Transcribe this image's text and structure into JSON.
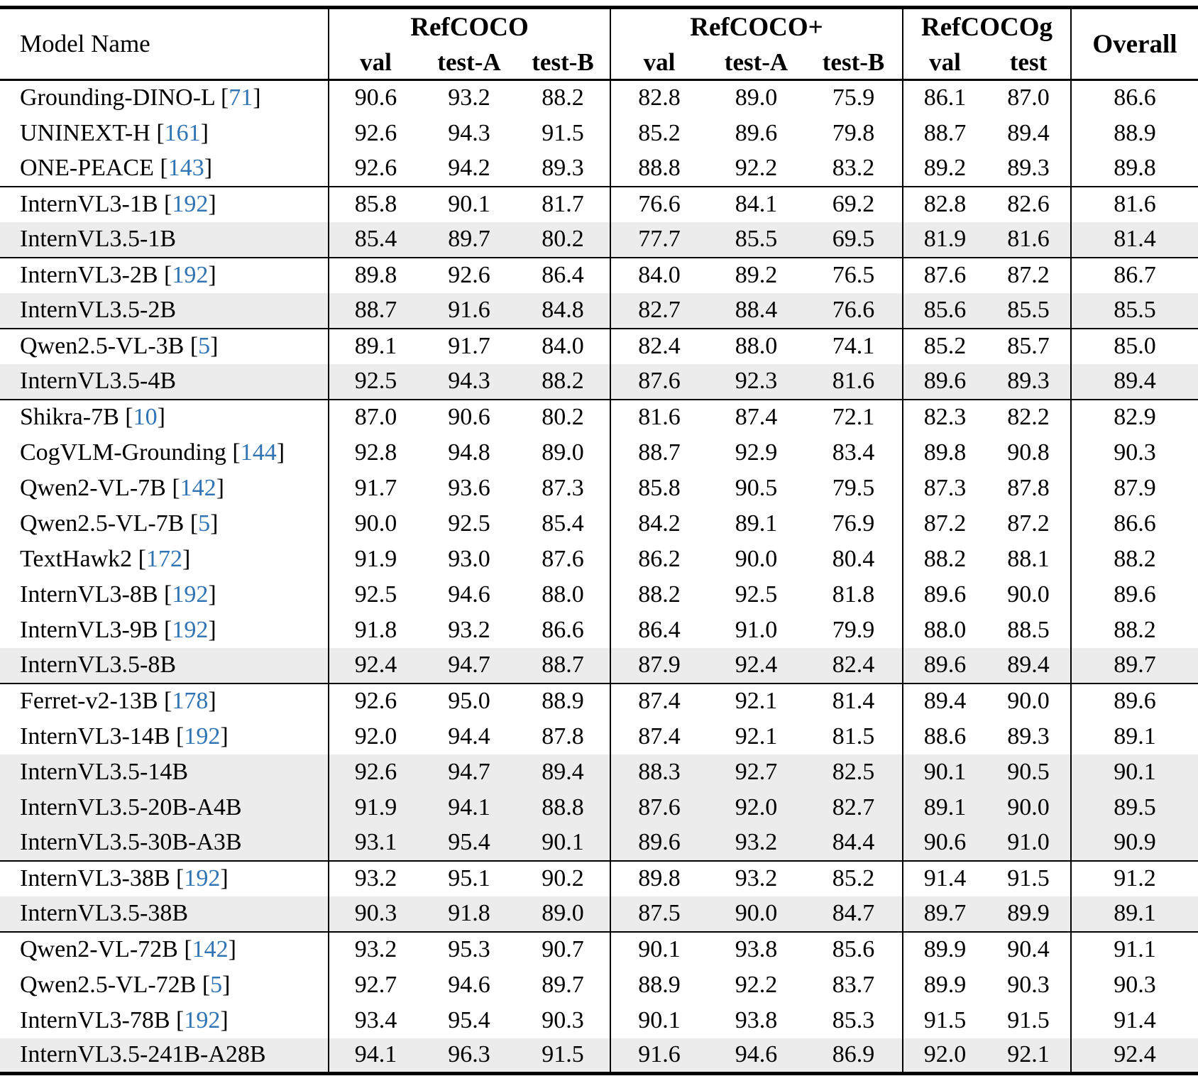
{
  "accent": {
    "citation_color": "#3174b4",
    "shaded_row_bg": "#ececec"
  },
  "table": {
    "header": {
      "model_col": "Model Name",
      "groups": [
        {
          "label": "RefCOCO",
          "subcols": [
            "val",
            "test-A",
            "test-B"
          ]
        },
        {
          "label": "RefCOCO+",
          "subcols": [
            "val",
            "test-A",
            "test-B"
          ]
        },
        {
          "label": "RefCOCOg",
          "subcols": [
            "val",
            "test"
          ]
        },
        {
          "label": "Overall",
          "subcols": []
        }
      ]
    },
    "rows": [
      {
        "model": "Grounding-DINO-L",
        "cite": "71",
        "shaded": false,
        "group_start": false,
        "values": [
          "90.6",
          "93.2",
          "88.2",
          "82.8",
          "89.0",
          "75.9",
          "86.1",
          "87.0",
          "86.6"
        ]
      },
      {
        "model": "UNINEXT-H",
        "cite": "161",
        "shaded": false,
        "group_start": false,
        "values": [
          "92.6",
          "94.3",
          "91.5",
          "85.2",
          "89.6",
          "79.8",
          "88.7",
          "89.4",
          "88.9"
        ]
      },
      {
        "model": "ONE-PEACE",
        "cite": "143",
        "shaded": false,
        "group_start": false,
        "values": [
          "92.6",
          "94.2",
          "89.3",
          "88.8",
          "92.2",
          "83.2",
          "89.2",
          "89.3",
          "89.8"
        ]
      },
      {
        "model": "InternVL3-1B",
        "cite": "192",
        "shaded": false,
        "group_start": true,
        "values": [
          "85.8",
          "90.1",
          "81.7",
          "76.6",
          "84.1",
          "69.2",
          "82.8",
          "82.6",
          "81.6"
        ]
      },
      {
        "model": "InternVL3.5-1B",
        "cite": "",
        "shaded": true,
        "group_start": false,
        "values": [
          "85.4",
          "89.7",
          "80.2",
          "77.7",
          "85.5",
          "69.5",
          "81.9",
          "81.6",
          "81.4"
        ]
      },
      {
        "model": "InternVL3-2B",
        "cite": "192",
        "shaded": false,
        "group_start": true,
        "values": [
          "89.8",
          "92.6",
          "86.4",
          "84.0",
          "89.2",
          "76.5",
          "87.6",
          "87.2",
          "86.7"
        ]
      },
      {
        "model": "InternVL3.5-2B",
        "cite": "",
        "shaded": true,
        "group_start": false,
        "values": [
          "88.7",
          "91.6",
          "84.8",
          "82.7",
          "88.4",
          "76.6",
          "85.6",
          "85.5",
          "85.5"
        ]
      },
      {
        "model": "Qwen2.5-VL-3B",
        "cite": "5",
        "shaded": false,
        "group_start": true,
        "values": [
          "89.1",
          "91.7",
          "84.0",
          "82.4",
          "88.0",
          "74.1",
          "85.2",
          "85.7",
          "85.0"
        ]
      },
      {
        "model": "InternVL3.5-4B",
        "cite": "",
        "shaded": true,
        "group_start": false,
        "values": [
          "92.5",
          "94.3",
          "88.2",
          "87.6",
          "92.3",
          "81.6",
          "89.6",
          "89.3",
          "89.4"
        ]
      },
      {
        "model": "Shikra-7B",
        "cite": "10",
        "shaded": false,
        "group_start": true,
        "values": [
          "87.0",
          "90.6",
          "80.2",
          "81.6",
          "87.4",
          "72.1",
          "82.3",
          "82.2",
          "82.9"
        ]
      },
      {
        "model": "CogVLM-Grounding",
        "cite": "144",
        "shaded": false,
        "group_start": false,
        "values": [
          "92.8",
          "94.8",
          "89.0",
          "88.7",
          "92.9",
          "83.4",
          "89.8",
          "90.8",
          "90.3"
        ]
      },
      {
        "model": "Qwen2-VL-7B",
        "cite": "142",
        "shaded": false,
        "group_start": false,
        "values": [
          "91.7",
          "93.6",
          "87.3",
          "85.8",
          "90.5",
          "79.5",
          "87.3",
          "87.8",
          "87.9"
        ]
      },
      {
        "model": "Qwen2.5-VL-7B",
        "cite": "5",
        "shaded": false,
        "group_start": false,
        "values": [
          "90.0",
          "92.5",
          "85.4",
          "84.2",
          "89.1",
          "76.9",
          "87.2",
          "87.2",
          "86.6"
        ]
      },
      {
        "model": "TextHawk2",
        "cite": "172",
        "shaded": false,
        "group_start": false,
        "values": [
          "91.9",
          "93.0",
          "87.6",
          "86.2",
          "90.0",
          "80.4",
          "88.2",
          "88.1",
          "88.2"
        ]
      },
      {
        "model": "InternVL3-8B",
        "cite": "192",
        "shaded": false,
        "group_start": false,
        "values": [
          "92.5",
          "94.6",
          "88.0",
          "88.2",
          "92.5",
          "81.8",
          "89.6",
          "90.0",
          "89.6"
        ]
      },
      {
        "model": "InternVL3-9B",
        "cite": "192",
        "shaded": false,
        "group_start": false,
        "values": [
          "91.8",
          "93.2",
          "86.6",
          "86.4",
          "91.0",
          "79.9",
          "88.0",
          "88.5",
          "88.2"
        ]
      },
      {
        "model": "InternVL3.5-8B",
        "cite": "",
        "shaded": true,
        "group_start": false,
        "values": [
          "92.4",
          "94.7",
          "88.7",
          "87.9",
          "92.4",
          "82.4",
          "89.6",
          "89.4",
          "89.7"
        ]
      },
      {
        "model": "Ferret-v2-13B",
        "cite": "178",
        "shaded": false,
        "group_start": true,
        "values": [
          "92.6",
          "95.0",
          "88.9",
          "87.4",
          "92.1",
          "81.4",
          "89.4",
          "90.0",
          "89.6"
        ]
      },
      {
        "model": "InternVL3-14B",
        "cite": "192",
        "shaded": false,
        "group_start": false,
        "values": [
          "92.0",
          "94.4",
          "87.8",
          "87.4",
          "92.1",
          "81.5",
          "88.6",
          "89.3",
          "89.1"
        ]
      },
      {
        "model": "InternVL3.5-14B",
        "cite": "",
        "shaded": true,
        "group_start": false,
        "values": [
          "92.6",
          "94.7",
          "89.4",
          "88.3",
          "92.7",
          "82.5",
          "90.1",
          "90.5",
          "90.1"
        ]
      },
      {
        "model": "InternVL3.5-20B-A4B",
        "cite": "",
        "shaded": true,
        "group_start": false,
        "values": [
          "91.9",
          "94.1",
          "88.8",
          "87.6",
          "92.0",
          "82.7",
          "89.1",
          "90.0",
          "89.5"
        ]
      },
      {
        "model": "InternVL3.5-30B-A3B",
        "cite": "",
        "shaded": true,
        "group_start": false,
        "values": [
          "93.1",
          "95.4",
          "90.1",
          "89.6",
          "93.2",
          "84.4",
          "90.6",
          "91.0",
          "90.9"
        ]
      },
      {
        "model": "InternVL3-38B",
        "cite": "192",
        "shaded": false,
        "group_start": true,
        "values": [
          "93.2",
          "95.1",
          "90.2",
          "89.8",
          "93.2",
          "85.2",
          "91.4",
          "91.5",
          "91.2"
        ]
      },
      {
        "model": "InternVL3.5-38B",
        "cite": "",
        "shaded": true,
        "group_start": false,
        "values": [
          "90.3",
          "91.8",
          "89.0",
          "87.5",
          "90.0",
          "84.7",
          "89.7",
          "89.9",
          "89.1"
        ]
      },
      {
        "model": "Qwen2-VL-72B",
        "cite": "142",
        "shaded": false,
        "group_start": true,
        "values": [
          "93.2",
          "95.3",
          "90.7",
          "90.1",
          "93.8",
          "85.6",
          "89.9",
          "90.4",
          "91.1"
        ]
      },
      {
        "model": "Qwen2.5-VL-72B",
        "cite": "5",
        "shaded": false,
        "group_start": false,
        "values": [
          "92.7",
          "94.6",
          "89.7",
          "88.9",
          "92.2",
          "83.7",
          "89.9",
          "90.3",
          "90.3"
        ]
      },
      {
        "model": "InternVL3-78B",
        "cite": "192",
        "shaded": false,
        "group_start": false,
        "values": [
          "93.4",
          "95.4",
          "90.3",
          "90.1",
          "93.8",
          "85.3",
          "91.5",
          "91.5",
          "91.4"
        ]
      },
      {
        "model": "InternVL3.5-241B-A28B",
        "cite": "",
        "shaded": true,
        "group_start": false,
        "values": [
          "94.1",
          "96.3",
          "91.5",
          "91.6",
          "94.6",
          "86.9",
          "92.0",
          "92.1",
          "92.4"
        ]
      }
    ]
  }
}
